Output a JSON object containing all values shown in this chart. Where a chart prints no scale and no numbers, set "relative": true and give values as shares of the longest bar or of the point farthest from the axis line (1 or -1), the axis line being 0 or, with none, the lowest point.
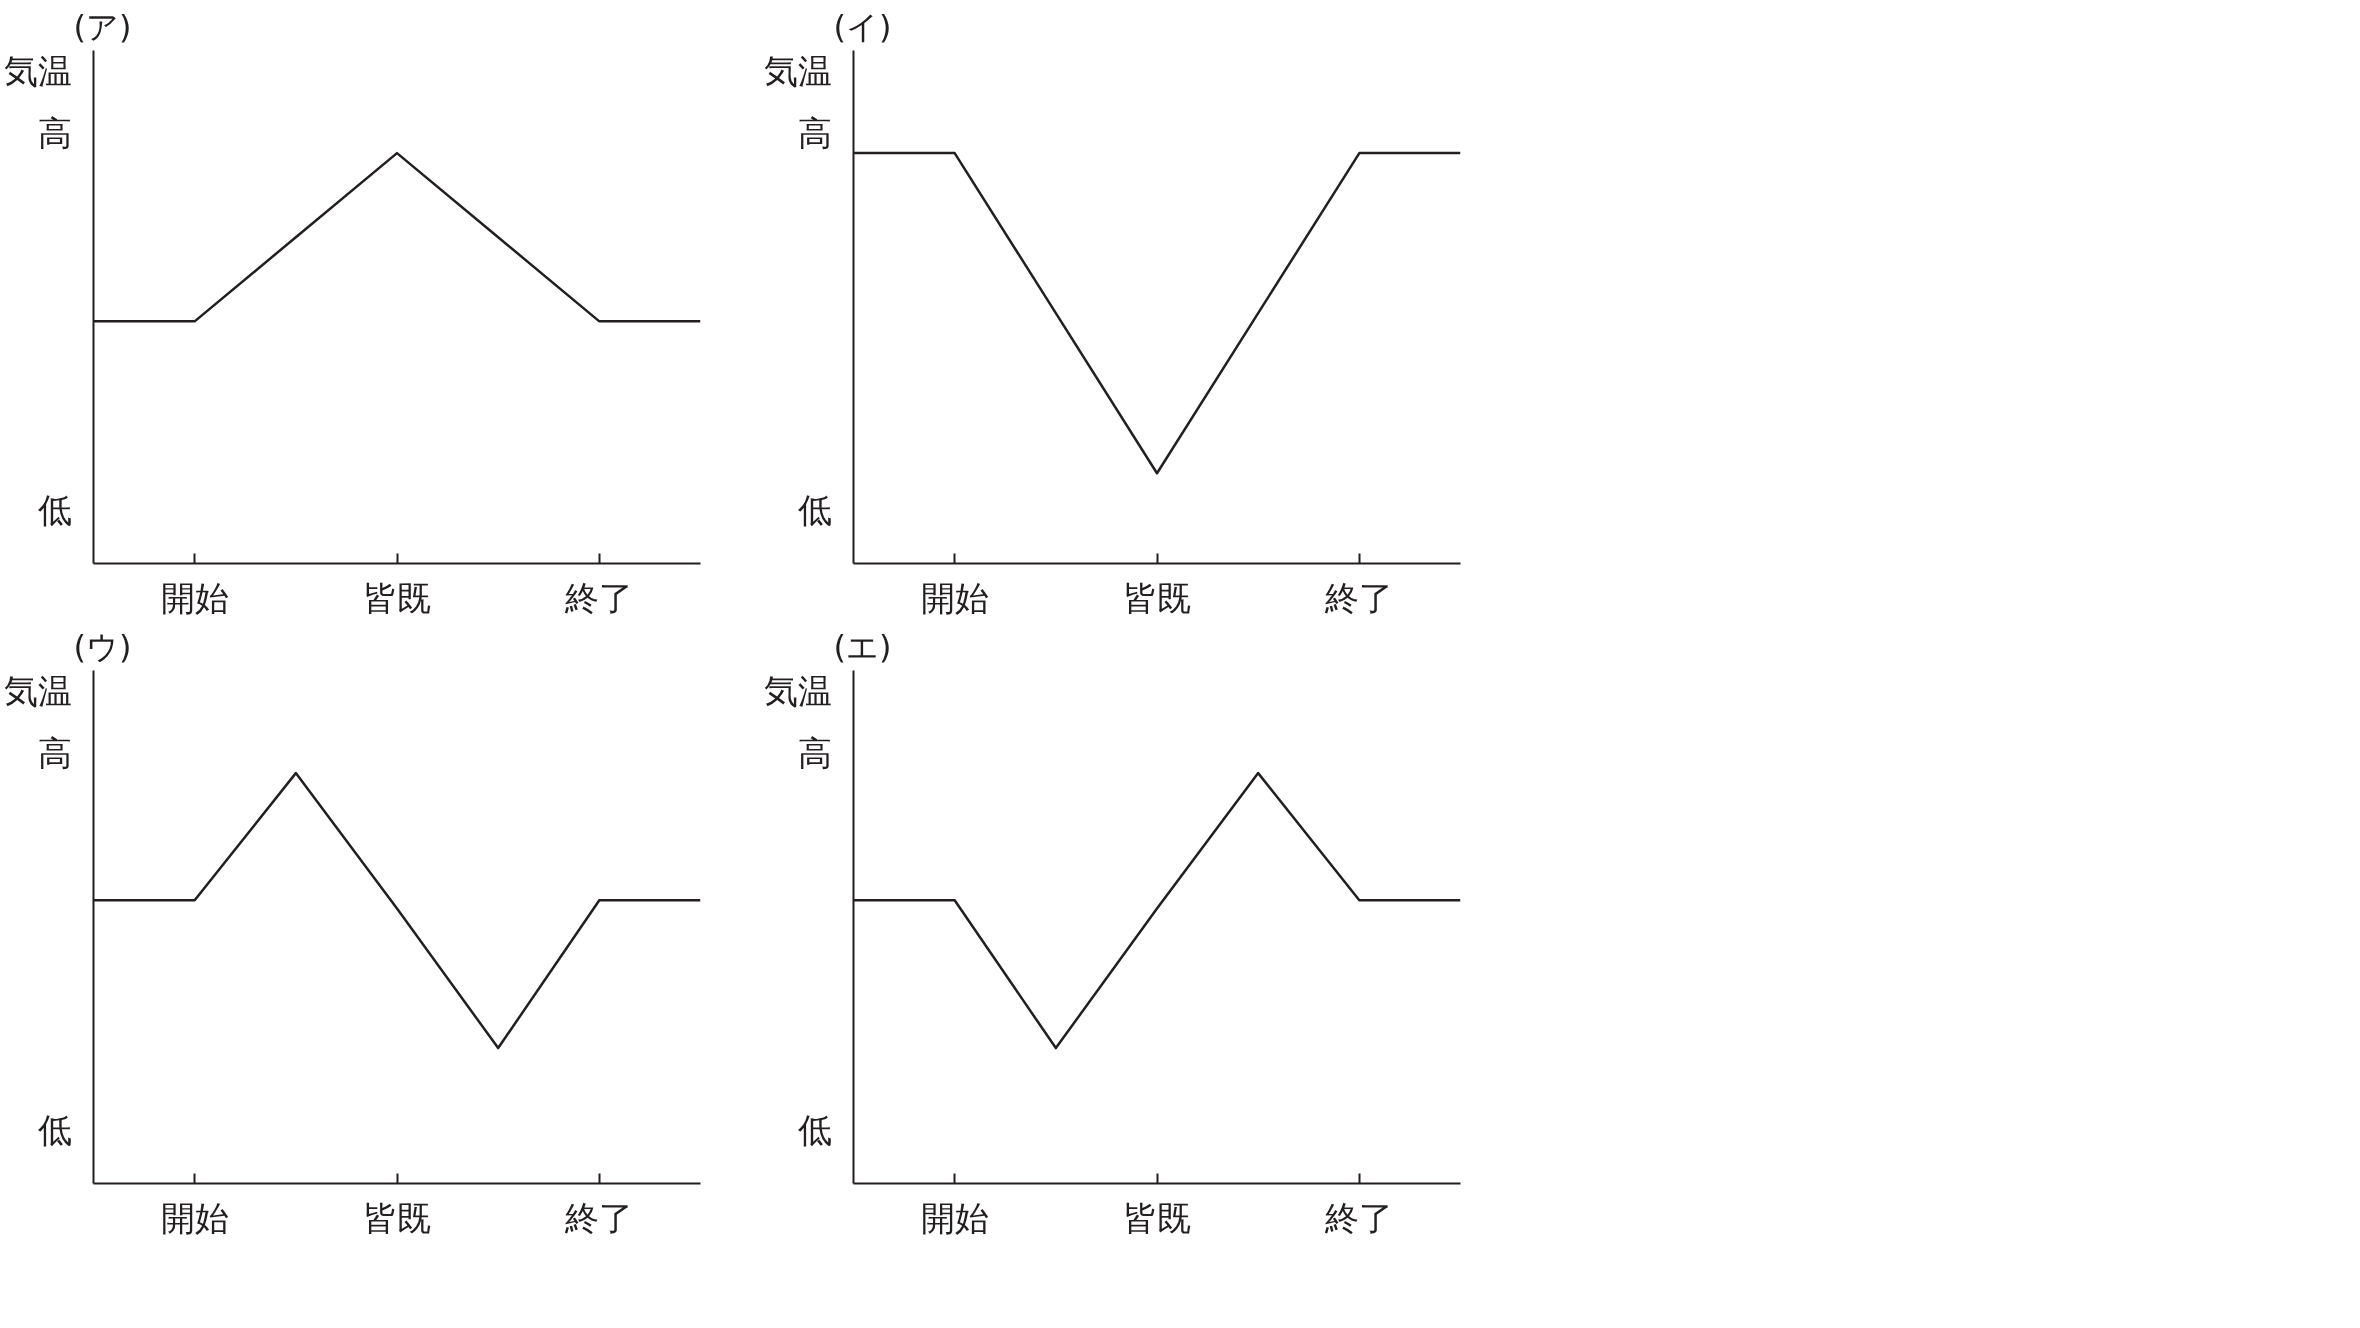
{
  "chart_data": [
    {
      "type": "line",
      "title": "(ア)",
      "ylabel": "気温",
      "annotations": [
        "高",
        "低"
      ],
      "relative": true,
      "grid": false,
      "legend": false,
      "categories": [
        null,
        "開始",
        null,
        "皆既",
        null,
        "終了",
        null
      ],
      "series": [
        {
          "color": "#231f20",
          "values": [
            0.59,
            0.59,
            0.795,
            1,
            0.795,
            0.59,
            0.59
          ]
        }
      ]
    },
    {
      "type": "line",
      "title": "(イ)",
      "ylabel": "気温",
      "annotations": [
        "高",
        "低"
      ],
      "relative": true,
      "grid": false,
      "legend": false,
      "categories": [
        null,
        "開始",
        null,
        "皆既",
        null,
        "終了",
        null
      ],
      "series": [
        {
          "color": "#231f20",
          "values": [
            1,
            1,
            0.61,
            0.22,
            0.61,
            1,
            1
          ]
        }
      ]
    },
    {
      "type": "line",
      "title": "(ウ)",
      "ylabel": "気温",
      "annotations": [
        "高",
        "低"
      ],
      "relative": true,
      "grid": false,
      "legend": false,
      "categories": [
        null,
        "開始",
        null,
        "皆既",
        null,
        "終了",
        null
      ],
      "series": [
        {
          "color": "#231f20",
          "values": [
            0.69,
            0.69,
            1,
            0.67,
            0.33,
            0.69,
            0.69
          ]
        }
      ]
    },
    {
      "type": "line",
      "title": "(エ)",
      "ylabel": "気温",
      "annotations": [
        "高",
        "低"
      ],
      "relative": true,
      "grid": false,
      "legend": false,
      "categories": [
        null,
        "開始",
        null,
        "皆既",
        null,
        "終了",
        null
      ],
      "series": [
        {
          "color": "#231f20",
          "values": [
            0.69,
            0.69,
            0.33,
            0.67,
            1,
            0.69,
            0.69
          ]
        }
      ]
    }
  ]
}
